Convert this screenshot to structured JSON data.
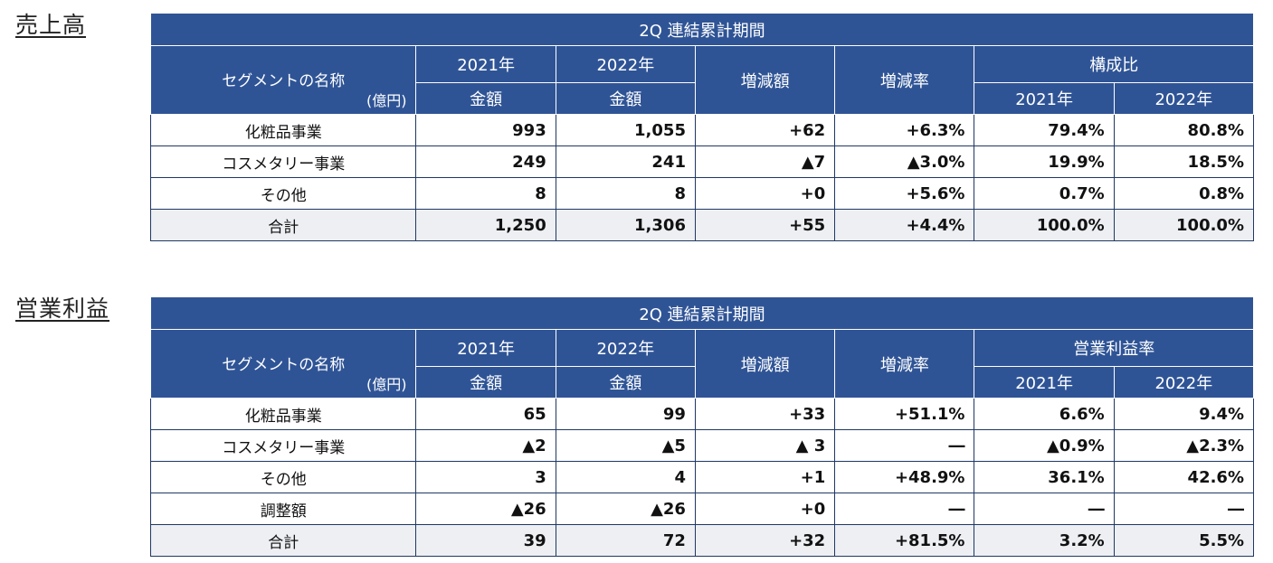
{
  "sales": {
    "title": "売上高",
    "period": "2Q 連結累計期間",
    "segment_header": "セグメントの名称",
    "unit": "(億円)",
    "year1": "2021年",
    "year2": "2022年",
    "amount": "金額",
    "change": "増減額",
    "rate": "増減率",
    "ratio_header": "構成比",
    "rows": [
      {
        "name": "化粧品事業",
        "v1": "993",
        "v2": "1,055",
        "change": "+62",
        "rate": "+6.3%",
        "r1": "79.4%",
        "r2": "80.8%"
      },
      {
        "name": "コスメタリー事業",
        "v1": "249",
        "v2": "241",
        "change": "▲7",
        "rate": "▲3.0%",
        "r1": "19.9%",
        "r2": "18.5%"
      },
      {
        "name": "その他",
        "v1": "8",
        "v2": "8",
        "change": "+0",
        "rate": "+5.6%",
        "r1": "0.7%",
        "r2": "0.8%"
      },
      {
        "name": "合計",
        "v1": "1,250",
        "v2": "1,306",
        "change": "+55",
        "rate": "+4.4%",
        "r1": "100.0%",
        "r2": "100.0%"
      }
    ]
  },
  "op": {
    "title": "営業利益",
    "period": "2Q 連結累計期間",
    "segment_header": "セグメントの名称",
    "unit": "(億円)",
    "year1": "2021年",
    "year2": "2022年",
    "amount": "金額",
    "change": "増減額",
    "rate": "増減率",
    "ratio_header": "営業利益率",
    "rows": [
      {
        "name": "化粧品事業",
        "v1": "65",
        "v2": "99",
        "change": "+33",
        "rate": "+51.1%",
        "r1": "6.6%",
        "r2": "9.4%"
      },
      {
        "name": "コスメタリー事業",
        "v1": "▲2",
        "v2": "▲5",
        "change": "▲ 3",
        "rate": "―",
        "r1": "▲0.9%",
        "r2": "▲2.3%"
      },
      {
        "name": "その他",
        "v1": "3",
        "v2": "4",
        "change": "+1",
        "rate": "+48.9%",
        "r1": "36.1%",
        "r2": "42.6%"
      },
      {
        "name": "調整額",
        "v1": "▲26",
        "v2": "▲26",
        "change": "+0",
        "rate": "―",
        "r1": "―",
        "r2": "―"
      },
      {
        "name": "合計",
        "v1": "39",
        "v2": "72",
        "change": "+32",
        "rate": "+81.5%",
        "r1": "3.2%",
        "r2": "5.5%"
      }
    ]
  }
}
